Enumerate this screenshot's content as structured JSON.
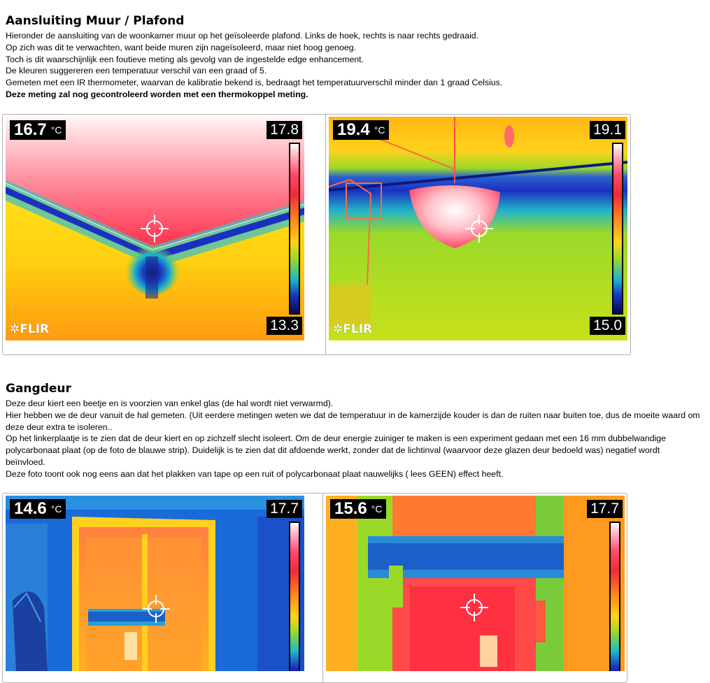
{
  "section1": {
    "title": "Aansluiting Muur / Plafond",
    "lines": [
      "Hieronder de aansluiting  van de woonkamer muur op het geïsoleerde plafond. Links de hoek, rechts is  naar  rechts gedraaid.",
      "Op zich  was dit te verwachten, want beide muren zijn nageïsoleerd, maar niet hoog genoeg.",
      "Toch is dit waarschijnlijk  een foutieve meting als gevolg van de ingestelde edge enhancement.",
      "De kleuren suggereren een temperatuur verschil van een graad of 5.",
      "Gemeten met een IR thermometer, waarvan de kalibratie  bekend is, bedraagt het temperatuurverschil minder dan 1 graad  Celsius."
    ],
    "bold_line": "Deze meting zal nog gecontroleerd worden met een thermokoppel meting.",
    "images": [
      {
        "temp": "16.7",
        "unit": "°C",
        "scale_max": "17.8",
        "scale_min": "13.3",
        "logo": "FLIR"
      },
      {
        "temp": "19.4",
        "unit": "°C",
        "scale_max": "19.1",
        "scale_min": "15.0",
        "logo": "FLIR"
      }
    ]
  },
  "section2": {
    "title": "Gangdeur",
    "lines": [
      "Deze deur kiert een beetje en is voorzien van enkel glas  (de hal  wordt niet verwarmd).",
      "Hier hebben we de deur vanuit de hal  gemeten. (Uit eerdere metingen weten we dat de temperatuur in de kamerzijde kouder is  dan de ruiten naar  buiten toe, dus de moeite waard om deze deur extra te isoleren..",
      "Op het linkerplaatje is  te zien dat de deur kiert en op zichzelf slecht isoleert. Om de deur energie zuiniger te maken is een experiment gedaan met een 16 mm dubbelwandige polycarbonaat  plaat  (op de foto de blauwe strip). Duidelijk  is  te zien dat dit afdoende werkt, zonder dat de lichtinval  (waarvoor deze glazen deur bedoeld was) negatief wordt beïnvloed.",
      "Deze foto toont ook nog eens aan dat het plakken van tape op een ruit of polycarbonaat  plaat  nauwelijks  ( lees GEEN) effect heeft."
    ],
    "images": [
      {
        "temp": "14.6",
        "unit": "°C",
        "scale_max": "17.7"
      },
      {
        "temp": "15.6",
        "unit": "°C",
        "scale_max": "17.7"
      }
    ]
  },
  "icons": {
    "crosshair": "crosshair-icon",
    "logo": "flir-logo-icon"
  }
}
